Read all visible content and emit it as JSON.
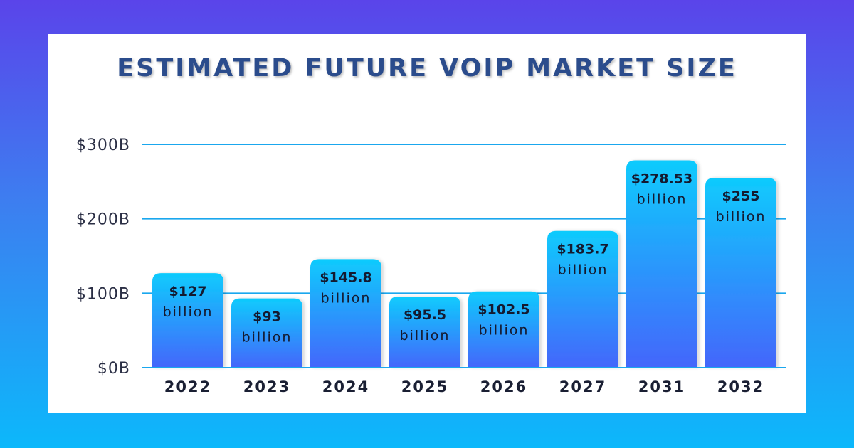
{
  "chart_data": {
    "type": "bar",
    "title": "ESTIMATED FUTURE VOIP MARKET SIZE",
    "categories": [
      "2022",
      "2023",
      "2024",
      "2025",
      "2026",
      "2027",
      "2031",
      "2032"
    ],
    "values": [
      127,
      93,
      145.8,
      95.5,
      102.5,
      183.7,
      278.53,
      255
    ],
    "data_labels": [
      "$127",
      "$93",
      "$145.8",
      "$95.5",
      "$102.5",
      "$183.7",
      "$278.53",
      "$255"
    ],
    "data_label_unit": "billion",
    "yticks": [
      0,
      100,
      200,
      300
    ],
    "ytick_labels": [
      "$0B",
      "$100B",
      "$200B",
      "$300B"
    ],
    "ylim": [
      0,
      300
    ],
    "grid": true,
    "colors": {
      "bar_top": "#0fcbfd",
      "bar_bottom": "#4466fb",
      "grid": "#1aa7ee",
      "title": "#2b4c8c"
    }
  }
}
